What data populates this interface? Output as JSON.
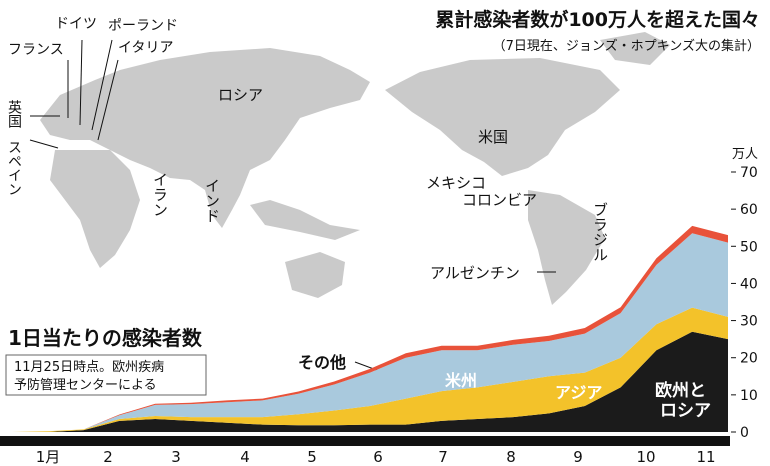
{
  "map": {
    "title": "累計感染者数が100万人を超えた国々",
    "subtitle": "（7日現在、ジョンズ・ホプキンズ大の集計）",
    "countries": [
      "フランス",
      "ドイツ",
      "ポーランド",
      "イタリア",
      "英国",
      "スペイン",
      "ロシア",
      "イラン",
      "インド",
      "米国",
      "メキシコ",
      "コロンビア",
      "ブラジル",
      "アルゼンチン"
    ]
  },
  "chart_data": {
    "type": "area",
    "stacked": true,
    "title": "1日当たりの感染者数",
    "note": [
      "11月25日時点。欧州疾病",
      "予防管理センターによる"
    ],
    "ylabel": "万人",
    "ylim": [
      0,
      70
    ],
    "yticks": [
      "0",
      "10",
      "20",
      "30",
      "40",
      "50",
      "60",
      "70"
    ],
    "xlabels": [
      "1月",
      "2",
      "3",
      "4",
      "5",
      "6",
      "7",
      "8",
      "9",
      "10",
      "11"
    ],
    "x": [
      "1月初",
      "2月初",
      "3月初",
      "3月中",
      "4月初",
      "4月中",
      "5月初",
      "5月中",
      "6月初",
      "6月中",
      "7月初",
      "7月中",
      "8月初",
      "8月中",
      "9月初",
      "9月中",
      "10月初",
      "10月中",
      "11月初",
      "11月中",
      "11月25日"
    ],
    "series": [
      {
        "name": "欧州とロシア",
        "color": "#1b1b1b",
        "values": [
          0,
          0,
          0.5,
          3,
          3.5,
          3,
          2.5,
          2,
          1.8,
          1.8,
          2,
          2,
          3,
          3.5,
          4,
          5,
          7,
          12,
          22,
          27,
          25
        ]
      },
      {
        "name": "アジア",
        "color": "#f3c22a",
        "values": [
          0,
          0.2,
          0.2,
          0.5,
          0.8,
          1,
          1.5,
          2,
          3,
          4,
          5,
          7,
          8,
          8.5,
          9.5,
          10,
          9,
          8,
          7,
          6.5,
          6
        ]
      },
      {
        "name": "米州",
        "color": "#a9c9dd",
        "values": [
          0,
          0,
          0,
          1,
          3,
          3.5,
          4,
          4.5,
          5.5,
          7,
          9,
          11,
          11,
          10,
          10,
          9.5,
          10.5,
          12,
          16,
          20,
          20
        ]
      },
      {
        "name": "その他",
        "color": "#e8523a",
        "values": [
          0,
          0,
          0,
          0.2,
          0.3,
          0.4,
          0.5,
          0.5,
          0.6,
          0.8,
          1,
          1.2,
          1.2,
          1.2,
          1.3,
          1.4,
          1.5,
          1.6,
          1.8,
          2,
          2
        ]
      }
    ]
  }
}
